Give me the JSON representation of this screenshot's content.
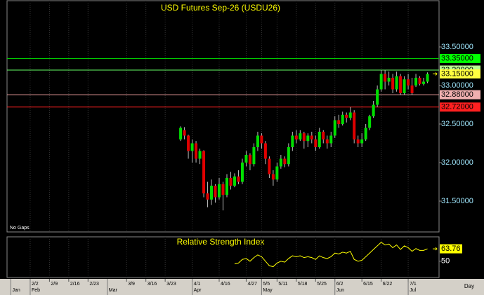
{
  "chart_data": {
    "type": "candlestick",
    "title": "USD Futures Sep-26 (USDU26)",
    "annotation": "No Gaps",
    "x_label": "Day",
    "xlim": [
      0,
      112
    ],
    "xticks": [
      {
        "value": 6,
        "label": "2/2"
      },
      {
        "value": 11,
        "label": "2/9"
      },
      {
        "value": 16,
        "label": "2/16"
      },
      {
        "value": 21,
        "label": "2/23"
      },
      {
        "value": 31,
        "label": "3/9"
      },
      {
        "value": 36,
        "label": "3/16"
      },
      {
        "value": 41,
        "label": "3/23"
      },
      {
        "value": 48,
        "label": "4/1"
      },
      {
        "value": 55,
        "label": "4/16"
      },
      {
        "value": 62,
        "label": "4/27"
      },
      {
        "value": 66,
        "label": "5/5"
      },
      {
        "value": 70,
        "label": "5/11"
      },
      {
        "value": 75,
        "label": "5/18"
      },
      {
        "value": 80,
        "label": "5/25"
      },
      {
        "value": 85,
        "label": "6/2"
      },
      {
        "value": 92,
        "label": "6/15"
      },
      {
        "value": 97,
        "label": "6/22"
      },
      {
        "value": 104,
        "label": "7/1"
      }
    ],
    "month_ticks": [
      {
        "value": 1,
        "label": "Jan"
      },
      {
        "value": 6,
        "label": "Feb"
      },
      {
        "value": 26,
        "label": "Mar"
      },
      {
        "value": 48,
        "label": "Apr"
      },
      {
        "value": 66,
        "label": "May"
      },
      {
        "value": 85,
        "label": "Jun"
      },
      {
        "value": 104,
        "label": "Jul"
      }
    ],
    "x": [
      45,
      46,
      47,
      48,
      49,
      50,
      51,
      52,
      53,
      54,
      55,
      56,
      57,
      58,
      59,
      60,
      61,
      62,
      63,
      64,
      65,
      66,
      67,
      68,
      69,
      70,
      71,
      72,
      73,
      74,
      75,
      76,
      77,
      78,
      79,
      80,
      81,
      82,
      83,
      84,
      85,
      86,
      87,
      88,
      89,
      90,
      91,
      92,
      93,
      94,
      95,
      96,
      97,
      98,
      99,
      100,
      101,
      102,
      103,
      104,
      105,
      106,
      107,
      108,
      109
    ],
    "open": [
      32.3,
      32.42,
      32.35,
      32.15,
      32.25,
      32.05,
      32.15,
      31.6,
      31.52,
      31.7,
      31.55,
      31.72,
      31.58,
      31.8,
      31.7,
      31.82,
      31.75,
      32.0,
      32.1,
      31.98,
      32.2,
      32.35,
      32.25,
      32.05,
      31.85,
      31.78,
      31.95,
      32.05,
      31.98,
      32.2,
      32.35,
      32.3,
      32.38,
      32.28,
      32.35,
      32.3,
      32.2,
      32.4,
      32.3,
      32.25,
      32.35,
      32.55,
      32.5,
      32.62,
      32.58,
      32.65,
      32.3,
      32.25,
      32.3,
      32.45,
      32.6,
      32.75,
      32.95,
      33.15,
      33.05,
      33.1,
      32.95,
      33.12,
      32.9,
      33.08,
      33.0,
      33.0,
      33.1,
      33.02,
      33.05
    ],
    "high": [
      32.47,
      32.46,
      32.36,
      32.3,
      32.28,
      32.18,
      32.16,
      31.75,
      31.78,
      31.72,
      31.8,
      31.75,
      31.85,
      31.88,
      31.86,
      31.9,
      32.05,
      32.15,
      32.12,
      32.25,
      32.4,
      32.38,
      32.28,
      32.08,
      31.9,
      32.0,
      32.1,
      32.08,
      32.25,
      32.4,
      32.42,
      32.42,
      32.4,
      32.38,
      32.4,
      32.35,
      32.45,
      32.42,
      32.35,
      32.4,
      32.6,
      32.62,
      32.66,
      32.65,
      32.72,
      32.68,
      32.35,
      32.38,
      32.5,
      32.62,
      32.8,
      33.0,
      33.2,
      33.2,
      33.18,
      33.15,
      33.18,
      33.15,
      33.12,
      33.15,
      33.1,
      33.15,
      33.12,
      33.1,
      33.17
    ],
    "low": [
      32.28,
      32.3,
      32.05,
      32.0,
      32.0,
      31.98,
      31.55,
      31.42,
      31.45,
      31.48,
      31.52,
      31.38,
      31.55,
      31.65,
      31.68,
      31.72,
      31.72,
      31.95,
      31.9,
      31.95,
      32.15,
      32.18,
      31.98,
      31.8,
      31.7,
      31.75,
      31.92,
      31.94,
      31.95,
      32.15,
      32.25,
      32.28,
      32.18,
      32.2,
      32.25,
      32.15,
      32.18,
      32.25,
      32.18,
      32.2,
      32.32,
      32.45,
      32.48,
      32.52,
      32.55,
      32.25,
      32.2,
      32.2,
      32.28,
      32.42,
      32.58,
      32.72,
      32.92,
      32.95,
      33.0,
      32.9,
      32.92,
      32.88,
      32.88,
      32.95,
      32.88,
      32.98,
      33.0,
      33.0,
      33.03
    ],
    "close": [
      32.45,
      32.35,
      32.15,
      32.25,
      32.05,
      32.15,
      31.6,
      31.52,
      31.7,
      31.55,
      31.72,
      31.58,
      31.8,
      31.7,
      31.82,
      31.75,
      32.0,
      32.1,
      31.98,
      32.2,
      32.35,
      32.25,
      32.05,
      31.85,
      31.78,
      31.95,
      32.05,
      31.98,
      32.2,
      32.35,
      32.3,
      32.38,
      32.28,
      32.35,
      32.3,
      32.2,
      32.4,
      32.3,
      32.25,
      32.35,
      32.55,
      32.5,
      32.62,
      32.58,
      32.65,
      32.3,
      32.25,
      32.3,
      32.45,
      32.6,
      32.75,
      32.95,
      33.15,
      33.05,
      33.1,
      32.95,
      33.12,
      32.9,
      33.08,
      33.0,
      32.9,
      33.1,
      33.02,
      33.05,
      33.15
    ],
    "up_color": "#00e000",
    "down_color": "#e00000",
    "ylim": [
      31.1,
      34.1
    ],
    "yticks": [
      {
        "value": 31.5,
        "label": "31.50000"
      },
      {
        "value": 32.0,
        "label": "32.00000"
      },
      {
        "value": 32.5,
        "label": "32.50000"
      },
      {
        "value": 33.0,
        "label": "33.00000"
      },
      {
        "value": 33.5,
        "label": "33.50000"
      }
    ],
    "grid": true,
    "levels": [
      {
        "value": 33.35,
        "label": "33.35000",
        "color": "#00c800",
        "label_bg": "#00ff00",
        "line": true
      },
      {
        "value": 33.2,
        "label": "33.20000",
        "color": "#66ff66",
        "label_bg": "#b8ff90",
        "line": true
      },
      {
        "value": 33.15,
        "label": "33.15000",
        "color": "#ffff00",
        "label_bg": "#ffff40",
        "line": false
      },
      {
        "value": 32.88,
        "label": "32.88000",
        "color": "#f0a0a0",
        "label_bg": "#f0b0b0",
        "line": true
      },
      {
        "value": 32.72,
        "label": "32.72000",
        "color": "#ff2020",
        "label_bg": "#ff2020",
        "line": true
      }
    ],
    "rsi": {
      "title": "Relative Strength Index",
      "color": "#ffff00",
      "ylim": [
        32,
        77
      ],
      "yticks": [
        50
      ],
      "values": [
        null,
        null,
        null,
        null,
        null,
        null,
        null,
        null,
        null,
        null,
        null,
        null,
        null,
        null,
        47,
        48,
        52,
        53,
        50,
        54,
        57,
        55,
        50,
        45,
        44,
        48,
        50,
        49,
        53,
        56,
        55,
        56,
        54,
        55,
        54,
        52,
        56,
        54,
        53,
        55,
        59,
        58,
        60,
        59,
        61,
        52,
        50,
        51,
        55,
        59,
        63,
        67,
        71,
        68,
        69,
        65,
        68,
        63,
        67,
        65,
        61,
        64,
        62,
        62,
        63.76
      ]
    }
  }
}
